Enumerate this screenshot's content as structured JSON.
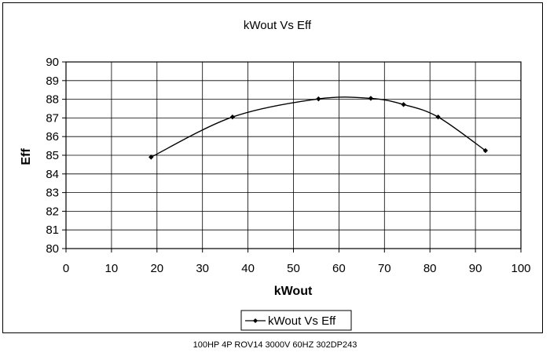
{
  "chart_data": {
    "type": "line",
    "title": "kWout Vs Eff",
    "xlabel": "kWout",
    "ylabel": "Eff",
    "xlim": [
      0,
      100
    ],
    "ylim": [
      80,
      90
    ],
    "xticks": [
      0,
      10,
      20,
      30,
      40,
      50,
      60,
      70,
      80,
      90,
      100
    ],
    "yticks": [
      80,
      81,
      82,
      83,
      84,
      85,
      86,
      87,
      88,
      89,
      90
    ],
    "grid": true,
    "legend_position": "bottom",
    "series": [
      {
        "name": "kWout Vs Eff",
        "color": "#000000",
        "marker": "diamond",
        "smooth": true,
        "x": [
          18.7,
          36.6,
          55.5,
          67.0,
          74.2,
          81.8,
          92.2
        ],
        "y": [
          84.9,
          87.05,
          88.02,
          88.05,
          87.72,
          87.05,
          85.25
        ]
      }
    ]
  },
  "footer": {
    "caption": "100HP 4P ROV14 3000V 60HZ 302DP243"
  }
}
